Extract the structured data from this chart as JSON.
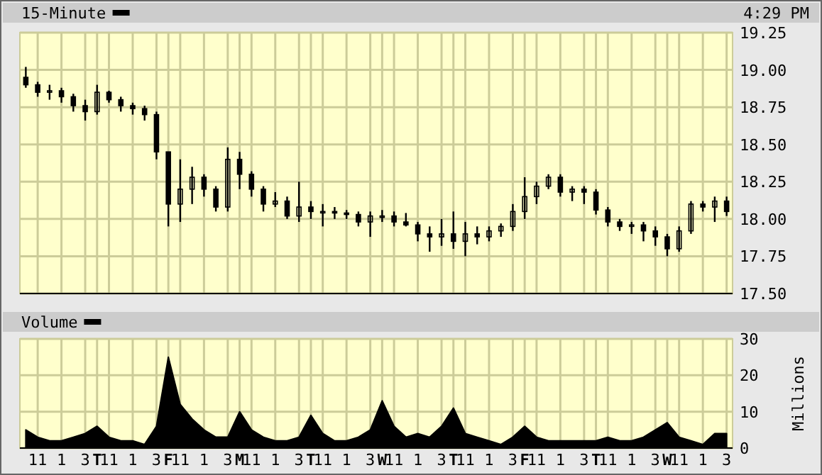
{
  "chart_data": [
    {
      "type": "candlestick",
      "legend": "top left",
      "grid": true,
      "tick_labels": "y",
      "annotations": [
        "4:29 PM"
      ],
      "categories": [
        null,
        null,
        null,
        null,
        null,
        null,
        null,
        null,
        null,
        null,
        null,
        null,
        null,
        null,
        null,
        null,
        null,
        null,
        null,
        null,
        null,
        null,
        null,
        null,
        null,
        null,
        null,
        null,
        null,
        null,
        null,
        null,
        null,
        null,
        null,
        null,
        null,
        null,
        null,
        null,
        null,
        null,
        null,
        null,
        null,
        null,
        null,
        null,
        null,
        null,
        null,
        null,
        null,
        null,
        null,
        null,
        null,
        null,
        null,
        null
      ],
      "ylim": [
        17.5,
        19.25
      ],
      "yticks": [
        {
          "value": 17.5,
          "label": "17.50"
        },
        17.75,
        {
          "value": 18,
          "label": "18.00"
        },
        18.25,
        {
          "value": 18.5,
          "label": "18.50"
        },
        18.75,
        {
          "value": 19,
          "label": "19.00"
        },
        19.25
      ],
      "series": [
        {
          "name": "15-Minute",
          "color": "#000000",
          "ohlc": [
            [
              18.95,
              19.02,
              18.88,
              18.9
            ],
            [
              18.9,
              18.92,
              18.82,
              18.85
            ],
            [
              18.85,
              18.9,
              18.8,
              18.86
            ],
            [
              18.86,
              18.88,
              18.78,
              18.82
            ],
            [
              18.82,
              18.84,
              18.72,
              18.76
            ],
            [
              18.76,
              18.8,
              18.66,
              18.72
            ],
            [
              18.72,
              18.9,
              18.7,
              18.85
            ],
            [
              18.85,
              18.86,
              18.78,
              18.8
            ],
            [
              18.8,
              18.82,
              18.72,
              18.76
            ],
            [
              18.76,
              18.78,
              18.7,
              18.74
            ],
            [
              18.74,
              18.76,
              18.66,
              18.7
            ],
            [
              18.7,
              18.72,
              18.4,
              18.45
            ],
            [
              18.45,
              18.45,
              17.95,
              18.1
            ],
            [
              18.1,
              18.4,
              17.98,
              18.2
            ],
            [
              18.2,
              18.35,
              18.1,
              18.28
            ],
            [
              18.28,
              18.3,
              18.15,
              18.2
            ],
            [
              18.2,
              18.22,
              18.05,
              18.08
            ],
            [
              18.08,
              18.48,
              18.05,
              18.4
            ],
            [
              18.4,
              18.45,
              18.2,
              18.3
            ],
            [
              18.3,
              18.32,
              18.15,
              18.2
            ],
            [
              18.2,
              18.22,
              18.05,
              18.1
            ],
            [
              18.1,
              18.18,
              18.08,
              18.12
            ],
            [
              18.12,
              18.15,
              18.0,
              18.02
            ],
            [
              18.02,
              18.25,
              17.98,
              18.08
            ],
            [
              18.08,
              18.12,
              18.0,
              18.05
            ],
            [
              18.05,
              18.1,
              17.95,
              18.05
            ],
            [
              18.05,
              18.08,
              18.0,
              18.04
            ],
            [
              18.04,
              18.06,
              18.0,
              18.03
            ],
            [
              18.03,
              18.05,
              17.95,
              17.98
            ],
            [
              17.98,
              18.05,
              17.88,
              18.02
            ],
            [
              18.02,
              18.06,
              17.98,
              18.02
            ],
            [
              18.02,
              18.05,
              17.95,
              17.98
            ],
            [
              17.98,
              18.04,
              17.95,
              17.96
            ],
            [
              17.96,
              17.98,
              17.85,
              17.9
            ],
            [
              17.9,
              17.95,
              17.78,
              17.88
            ],
            [
              17.88,
              18.0,
              17.82,
              17.9
            ],
            [
              17.9,
              18.05,
              17.8,
              17.85
            ],
            [
              17.85,
              17.98,
              17.75,
              17.9
            ],
            [
              17.9,
              17.95,
              17.83,
              17.88
            ],
            [
              17.88,
              17.95,
              17.85,
              17.92
            ],
            [
              17.92,
              17.97,
              17.88,
              17.95
            ],
            [
              17.95,
              18.1,
              17.92,
              18.05
            ],
            [
              18.05,
              18.28,
              18.0,
              18.15
            ],
            [
              18.15,
              18.25,
              18.1,
              18.22
            ],
            [
              18.22,
              18.3,
              18.2,
              18.28
            ],
            [
              18.28,
              18.3,
              18.15,
              18.18
            ],
            [
              18.18,
              18.22,
              18.12,
              18.2
            ],
            [
              18.2,
              18.22,
              18.1,
              18.18
            ],
            [
              18.18,
              18.2,
              18.03,
              18.06
            ],
            [
              18.06,
              18.08,
              17.95,
              17.98
            ],
            [
              17.98,
              18.0,
              17.92,
              17.95
            ],
            [
              17.95,
              17.98,
              17.9,
              17.96
            ],
            [
              17.96,
              17.98,
              17.85,
              17.92
            ],
            [
              17.92,
              17.95,
              17.82,
              17.88
            ],
            [
              17.88,
              17.9,
              17.75,
              17.8
            ],
            [
              17.8,
              17.95,
              17.78,
              17.92
            ],
            [
              17.92,
              18.12,
              17.9,
              18.1
            ],
            [
              18.1,
              18.12,
              18.05,
              18.08
            ],
            [
              18.08,
              18.15,
              17.98,
              18.12
            ],
            [
              18.12,
              18.15,
              18.02,
              18.05
            ]
          ]
        }
      ]
    },
    {
      "type": "area",
      "legend": "top left",
      "grid": true,
      "ylabel": "Millions",
      "categories": [
        null,
        "11",
        null,
        "1",
        null,
        "3",
        "T",
        "11",
        null,
        "1",
        null,
        "3",
        "F",
        "11",
        null,
        "1",
        null,
        "3",
        "M",
        "11",
        null,
        "1",
        null,
        "3",
        "T",
        "11",
        null,
        "1",
        null,
        "3",
        "W",
        "11",
        null,
        "1",
        null,
        "3",
        "T",
        "11",
        null,
        "1",
        null,
        "3",
        "F",
        "11",
        null,
        "1",
        null,
        "3",
        "T",
        "11",
        null,
        "1",
        null,
        "3",
        "W",
        "11",
        null,
        "1",
        null,
        "3"
      ],
      "ylim": [
        0,
        30
      ],
      "yticks": [
        0,
        10,
        20,
        30
      ],
      "series": [
        {
          "name": "Volume",
          "color": "#000000",
          "values": [
            5,
            3,
            2,
            2,
            3,
            4,
            6,
            3,
            2,
            2,
            1,
            6,
            25,
            12,
            8,
            5,
            3,
            3,
            10,
            5,
            3,
            2,
            2,
            3,
            9,
            4,
            2,
            2,
            3,
            5,
            13,
            6,
            3,
            4,
            3,
            6,
            11,
            4,
            3,
            2,
            1,
            3,
            6,
            3,
            2,
            2,
            2,
            2,
            2,
            3,
            2,
            2,
            3,
            5,
            7,
            3,
            2,
            1,
            4,
            4
          ]
        }
      ]
    }
  ]
}
